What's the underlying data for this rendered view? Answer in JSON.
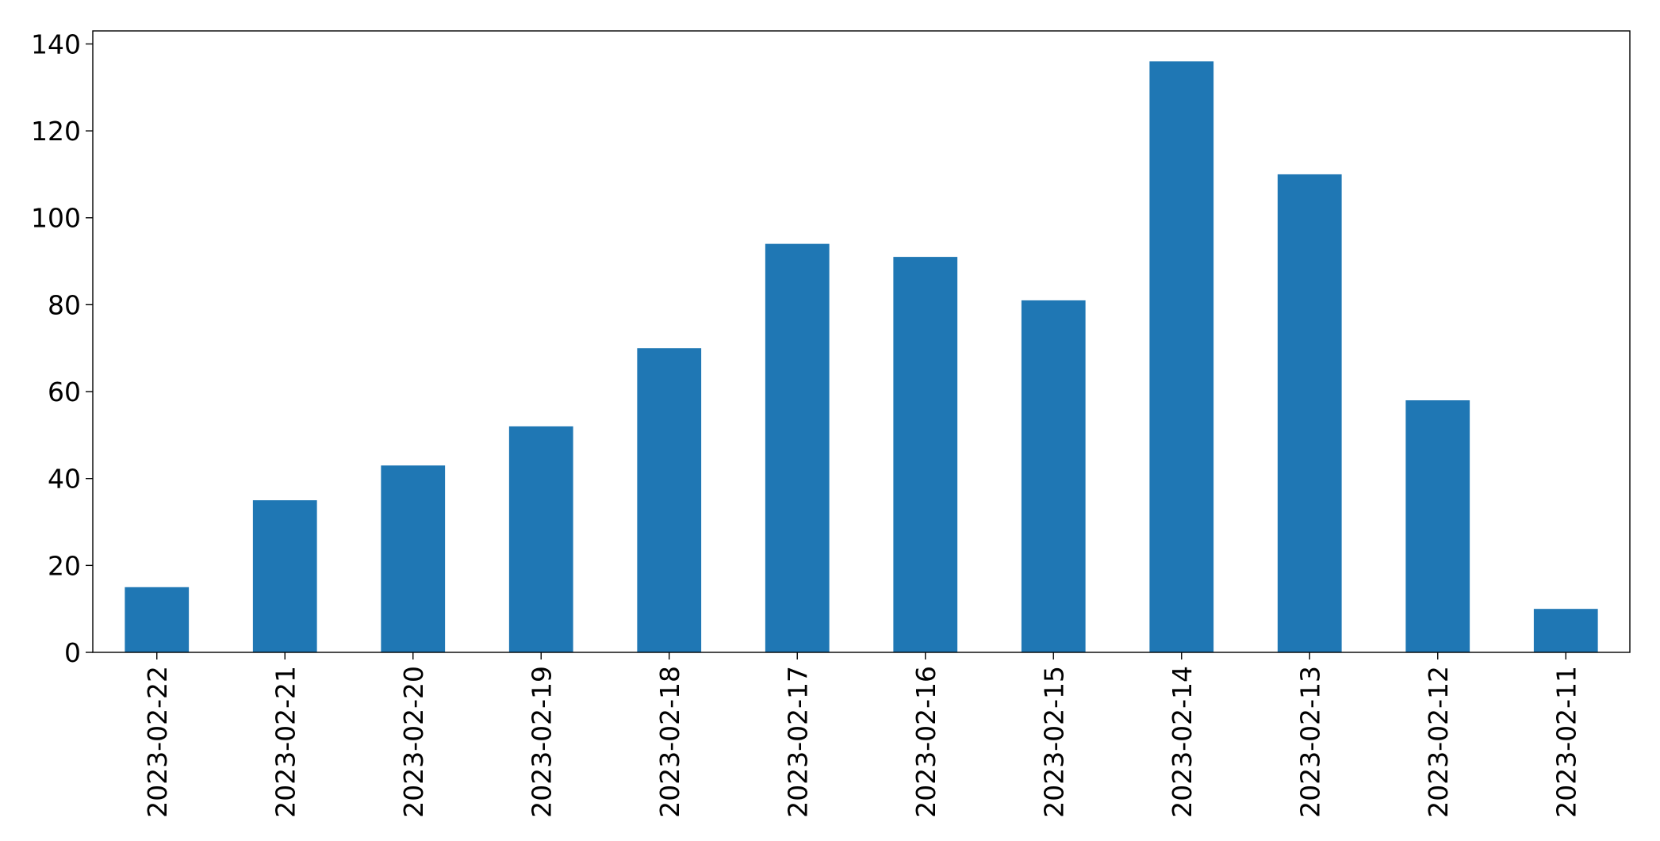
{
  "chart_data": {
    "type": "bar",
    "title": "",
    "xlabel": "",
    "ylabel": "",
    "categories": [
      "2023-02-22",
      "2023-02-21",
      "2023-02-20",
      "2023-02-19",
      "2023-02-18",
      "2023-02-17",
      "2023-02-16",
      "2023-02-15",
      "2023-02-14",
      "2023-02-13",
      "2023-02-12",
      "2023-02-11"
    ],
    "values": [
      15,
      35,
      43,
      52,
      70,
      94,
      91,
      81,
      136,
      110,
      58,
      10
    ],
    "ylim": [
      0,
      143
    ],
    "yticks": [
      0,
      20,
      40,
      60,
      80,
      100,
      120,
      140
    ],
    "ytick_labels": [
      "0",
      "20",
      "40",
      "60",
      "80",
      "100",
      "120",
      "140"
    ],
    "grid": false,
    "legend": "none",
    "bar_color": "#1f77b4"
  }
}
